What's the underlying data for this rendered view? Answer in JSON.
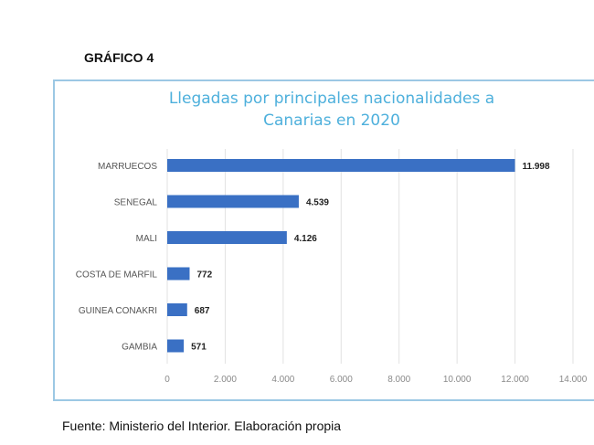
{
  "heading": "GRÁFICO 4",
  "source": "Fuente: Ministerio del Interior. Elaboración propia",
  "chart_data": {
    "type": "bar",
    "orientation": "horizontal",
    "title_lines": [
      "Llegadas por principales nacionalidades a",
      "Canarias en 2020"
    ],
    "categories": [
      "MARRUECOS",
      "SENEGAL",
      "MALI",
      "COSTA DE MARFIL",
      "GUINEA CONAKRI",
      "GAMBIA"
    ],
    "values": [
      11998,
      4539,
      4126,
      772,
      687,
      571
    ],
    "data_labels": [
      "11.998",
      "4.539",
      "4.126",
      "772",
      "687",
      "571"
    ],
    "xlim": [
      0,
      14000
    ],
    "xticks": [
      0,
      2000,
      4000,
      6000,
      8000,
      10000,
      12000,
      14000
    ],
    "xtick_labels": [
      "0",
      "2.000",
      "4.000",
      "6.000",
      "8.000",
      "10.000",
      "12.000",
      "14.000"
    ],
    "grid": "vertical",
    "legend": "none",
    "bar_color": "#3a70c4"
  }
}
